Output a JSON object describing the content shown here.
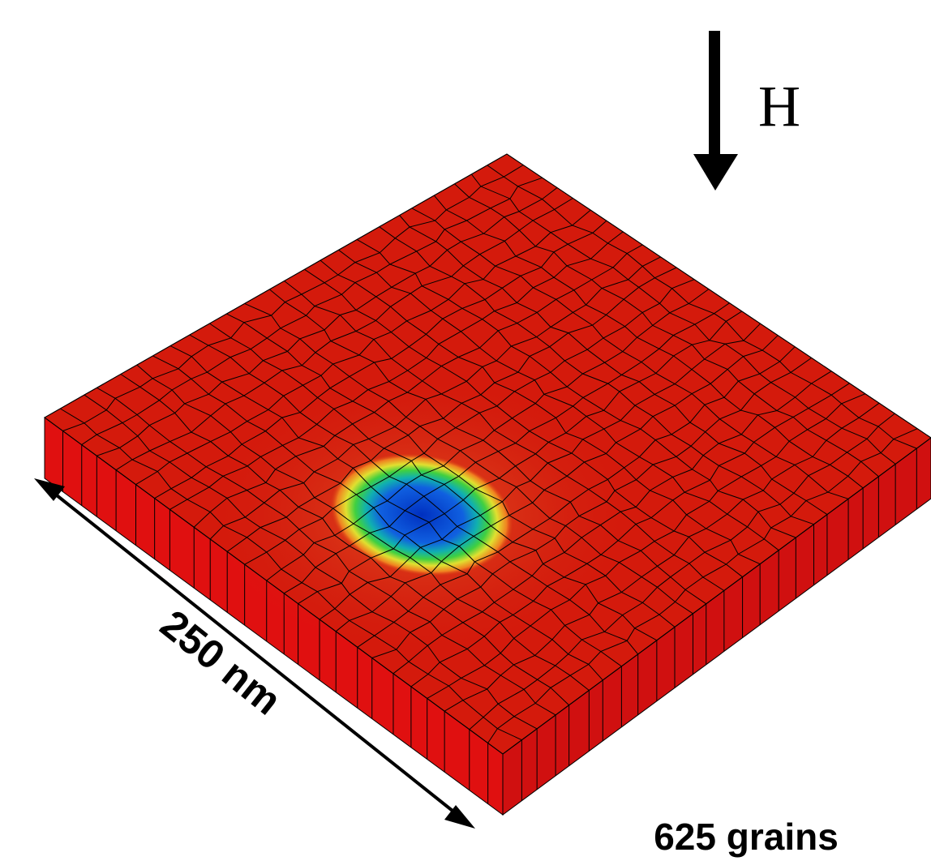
{
  "field_label": "H",
  "size_label": "250 nm",
  "grain_label": "625 grains"
}
